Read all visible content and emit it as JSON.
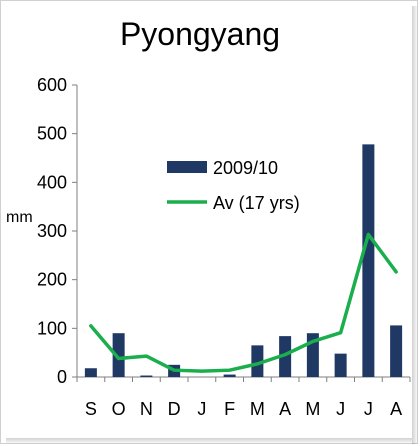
{
  "chart_data": {
    "type": "bar",
    "title": "Pyongyang",
    "ylabel": "mm",
    "xlabel": "",
    "categories": [
      "S",
      "O",
      "N",
      "D",
      "J",
      "F",
      "M",
      "A",
      "M",
      "J",
      "J",
      "A"
    ],
    "ylim": [
      0,
      600
    ],
    "yticks": [
      "0",
      "100",
      "200",
      "300",
      "400",
      "500",
      "600"
    ],
    "series": [
      {
        "name": "2009/10",
        "type": "bar",
        "color": "#1f3864",
        "values": [
          18,
          90,
          3,
          25,
          0,
          5,
          65,
          84,
          90,
          48,
          478,
          106
        ]
      },
      {
        "name": "Av (17 yrs)",
        "type": "line",
        "color": "#1aae4c",
        "values": [
          105,
          38,
          43,
          14,
          12,
          14,
          27,
          46,
          73,
          91,
          293,
          216
        ]
      }
    ],
    "grid": false,
    "legend_position": "upper-middle"
  }
}
